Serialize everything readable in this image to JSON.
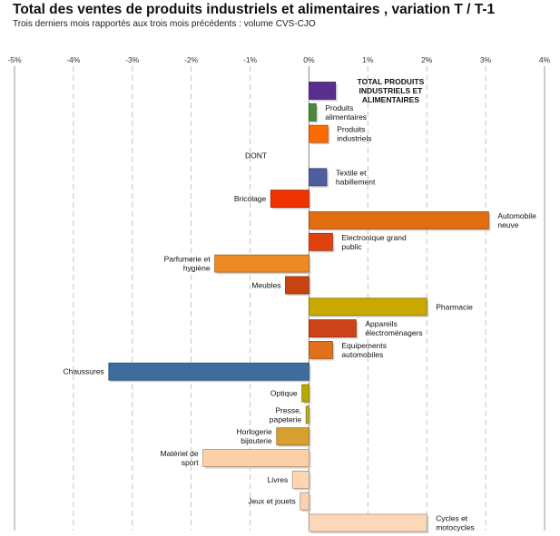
{
  "title": "Total des ventes de produits industriels et alimentaires  , variation T / T-1",
  "subtitle": "Trois derniers mois rapportés aux trois mois précédents : volume CVS-CJO",
  "chart_data": {
    "type": "bar",
    "orientation": "horizontal",
    "x_range": [
      -5,
      4
    ],
    "x_ticks": [
      "-5%",
      "-4%",
      "-3%",
      "-2%",
      "-1%",
      "0%",
      "1%",
      "2%",
      "3%",
      "4%"
    ],
    "grid": "vertical dashed",
    "categories": [
      {
        "label": "TOTAL PRODUITS INDUSTRIELS ET ALIMENTAIRES",
        "value": 0.45,
        "color": "#5b2d8e",
        "bold": true
      },
      {
        "label": "Produits alimentaires",
        "value": 0.12,
        "color": "#4a8a3c"
      },
      {
        "label": "Produits industriels",
        "value": 0.32,
        "color": "#ff6a00"
      },
      {
        "label": "DONT",
        "value": null,
        "heading": true
      },
      {
        "label": "Textile et habillement",
        "value": 0.3,
        "color": "#4e5fa0"
      },
      {
        "label": "Bricolage",
        "value": -0.65,
        "color": "#ee3300"
      },
      {
        "label": "Automobile neuve",
        "value": 3.05,
        "color": "#e06d10"
      },
      {
        "label": "Electronique grand public",
        "value": 0.4,
        "color": "#e0420e"
      },
      {
        "label": "Parfumerie et hygiène",
        "value": -1.6,
        "color": "#ee8a26"
      },
      {
        "label": "Meubles",
        "value": -0.4,
        "color": "#c8430f"
      },
      {
        "label": "Pharmacie",
        "value": 2.0,
        "color": "#c9a800"
      },
      {
        "label": "Appareils électroménagers",
        "value": 0.8,
        "color": "#cc4418"
      },
      {
        "label": "Equipements automobiles",
        "value": 0.4,
        "color": "#e0701a"
      },
      {
        "label": "Chaussures",
        "value": -3.4,
        "color": "#3d6c9e"
      },
      {
        "label": "Optique",
        "value": -0.12,
        "color": "#b9a800"
      },
      {
        "label": "Presse, papeterie",
        "value": -0.05,
        "color": "#c1ad20"
      },
      {
        "label": "Horlogerie bijouterie",
        "value": -0.55,
        "color": "#d6a030"
      },
      {
        "label": "Matériel de sport",
        "value": -1.8,
        "color": "#fdd0a8"
      },
      {
        "label": "Livres",
        "value": -0.28,
        "color": "#fdd5b2"
      },
      {
        "label": "Jeux et jouets",
        "value": -0.15,
        "color": "#fcd0b0"
      },
      {
        "label": "Cycles et motocycles",
        "value": 2.0,
        "color": "#fdd8b8"
      }
    ]
  }
}
